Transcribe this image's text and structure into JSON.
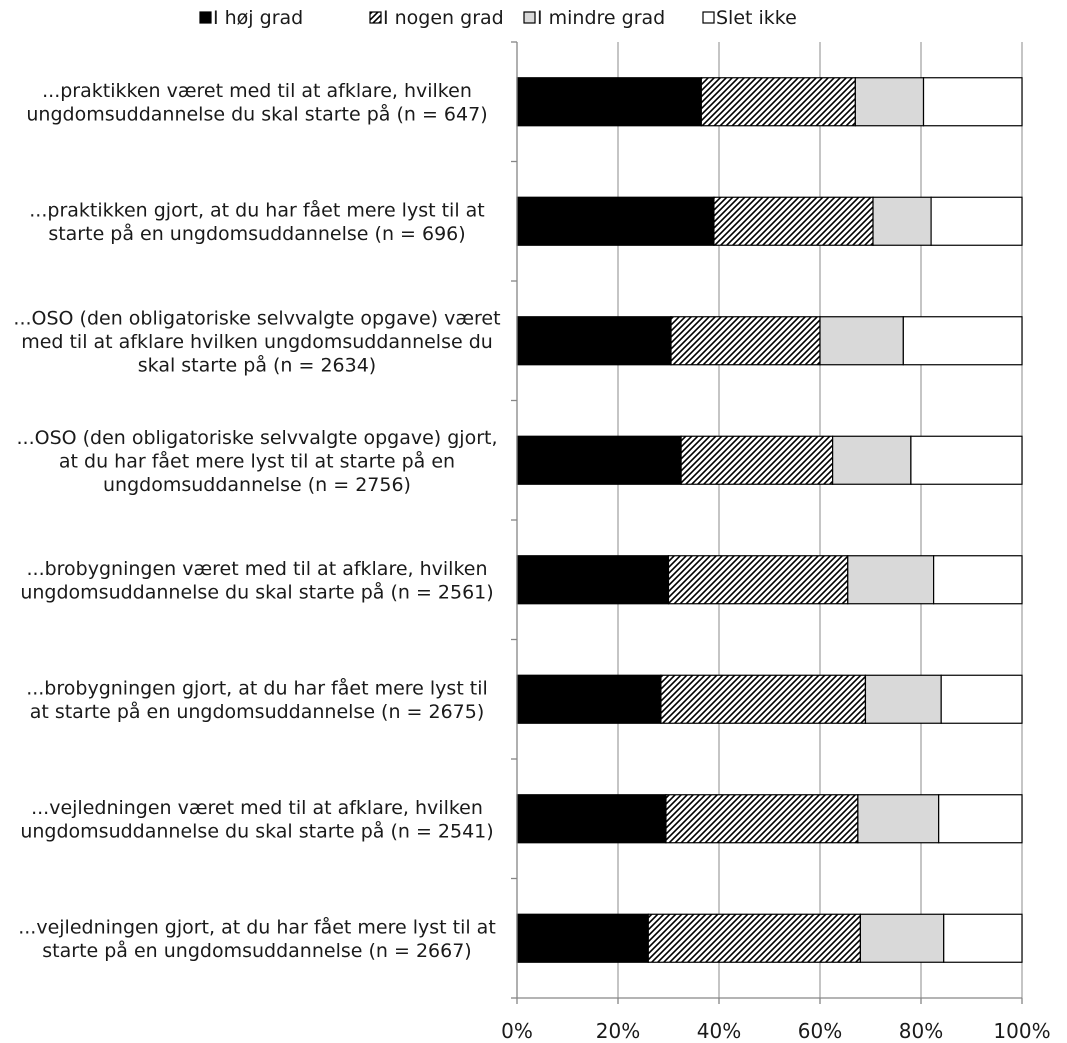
{
  "chart_data": {
    "type": "bar",
    "orientation": "horizontal",
    "stacked": "percent",
    "legend_position": "top",
    "grid": true,
    "xlim": [
      0,
      100
    ],
    "x_ticks": [
      "0%",
      "20%",
      "40%",
      "60%",
      "80%",
      "100%"
    ],
    "categories": [
      [
        "...praktikken været med til at afklare, hvilken",
        "ungdomsuddannelse du skal starte på (n = 647)"
      ],
      [
        "...praktikken gjort, at du har fået mere lyst til at",
        "starte på en ungdomsuddannelse (n = 696)"
      ],
      [
        "...OSO (den obligatoriske selvvalgte opgave) været",
        "med til at afklare hvilken ungdomsuddannelse du",
        "skal starte på (n = 2634)"
      ],
      [
        "...OSO (den obligatoriske selvvalgte opgave) gjort,",
        "at du har fået mere lyst til at starte på en",
        "ungdomsuddannelse (n = 2756)"
      ],
      [
        "...brobygningen været med til at afklare, hvilken",
        "ungdomsuddannelse du skal starte på (n = 2561)"
      ],
      [
        "...brobygningen gjort, at du har fået mere lyst til",
        "at starte på en ungdomsuddannelse (n = 2675)"
      ],
      [
        "...vejledningen været med til at afklare, hvilken",
        "ungdomsuddannelse du skal starte på (n = 2541)"
      ],
      [
        "...vejledningen gjort, at du har fået mere lyst til at",
        "starte på en ungdomsuddannelse (n = 2667)"
      ]
    ],
    "series": [
      {
        "name": "I høj grad",
        "fill": "black",
        "values": [
          36.5,
          39,
          30.5,
          32.5,
          30,
          28.5,
          29.5,
          26
        ]
      },
      {
        "name": "I nogen grad",
        "fill": "hatch",
        "values": [
          30.5,
          31.5,
          29.5,
          30,
          35.5,
          40.5,
          38,
          42
        ]
      },
      {
        "name": "I mindre grad",
        "fill": "gray",
        "values": [
          13.5,
          11.5,
          16.5,
          15.5,
          17,
          15,
          16,
          16.5
        ]
      },
      {
        "name": "Slet ikke",
        "fill": "white",
        "values": [
          19.5,
          18,
          23.5,
          22,
          17.5,
          16,
          16.5,
          15.5
        ]
      }
    ],
    "colors": {
      "black": "#000000",
      "gray": "#d9d9d9",
      "white": "#ffffff",
      "gridline": "#a6a6a6",
      "axis": "#868686"
    }
  }
}
